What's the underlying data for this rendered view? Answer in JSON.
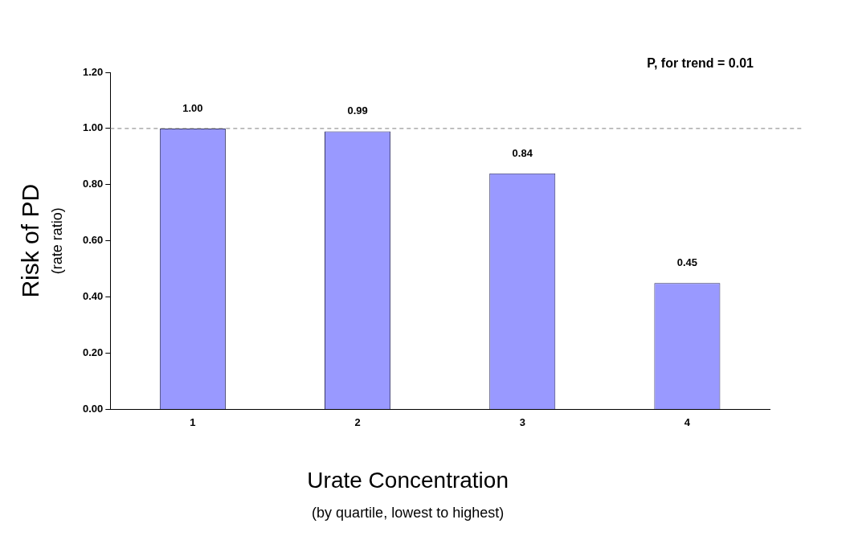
{
  "chart_data": {
    "type": "bar",
    "xlabel": "Urate Concentration\n(by quartile, lowest to highest)",
    "ylabel": "Risk of PD\n(rate ratio)",
    "categories": [
      "1",
      "2",
      "3",
      "4"
    ],
    "values": [
      1.0,
      0.99,
      0.84,
      0.45
    ],
    "color": "#9999ff",
    "ylim": [
      0,
      1.2
    ],
    "yticks": [
      {
        "value": 0,
        "label": "0.00"
      },
      {
        "value": 0.2,
        "label": "0.20"
      },
      {
        "value": 0.4,
        "label": "0.40"
      },
      {
        "value": 0.6,
        "label": "0.60"
      },
      {
        "value": 0.8,
        "label": "0.80"
      },
      {
        "value": 1,
        "label": "1.00"
      },
      {
        "value": 1.2,
        "label": "1.20"
      }
    ],
    "value_labels": [
      "1.00",
      "0.99",
      "0.84",
      "0.45"
    ],
    "ref_lines": [
      {
        "axis": "y",
        "value": 1,
        "color": "#808080",
        "line_style": "dashed"
      }
    ],
    "annotations": [
      "P, for trend = 0.01"
    ],
    "grid": false,
    "legend": false
  }
}
